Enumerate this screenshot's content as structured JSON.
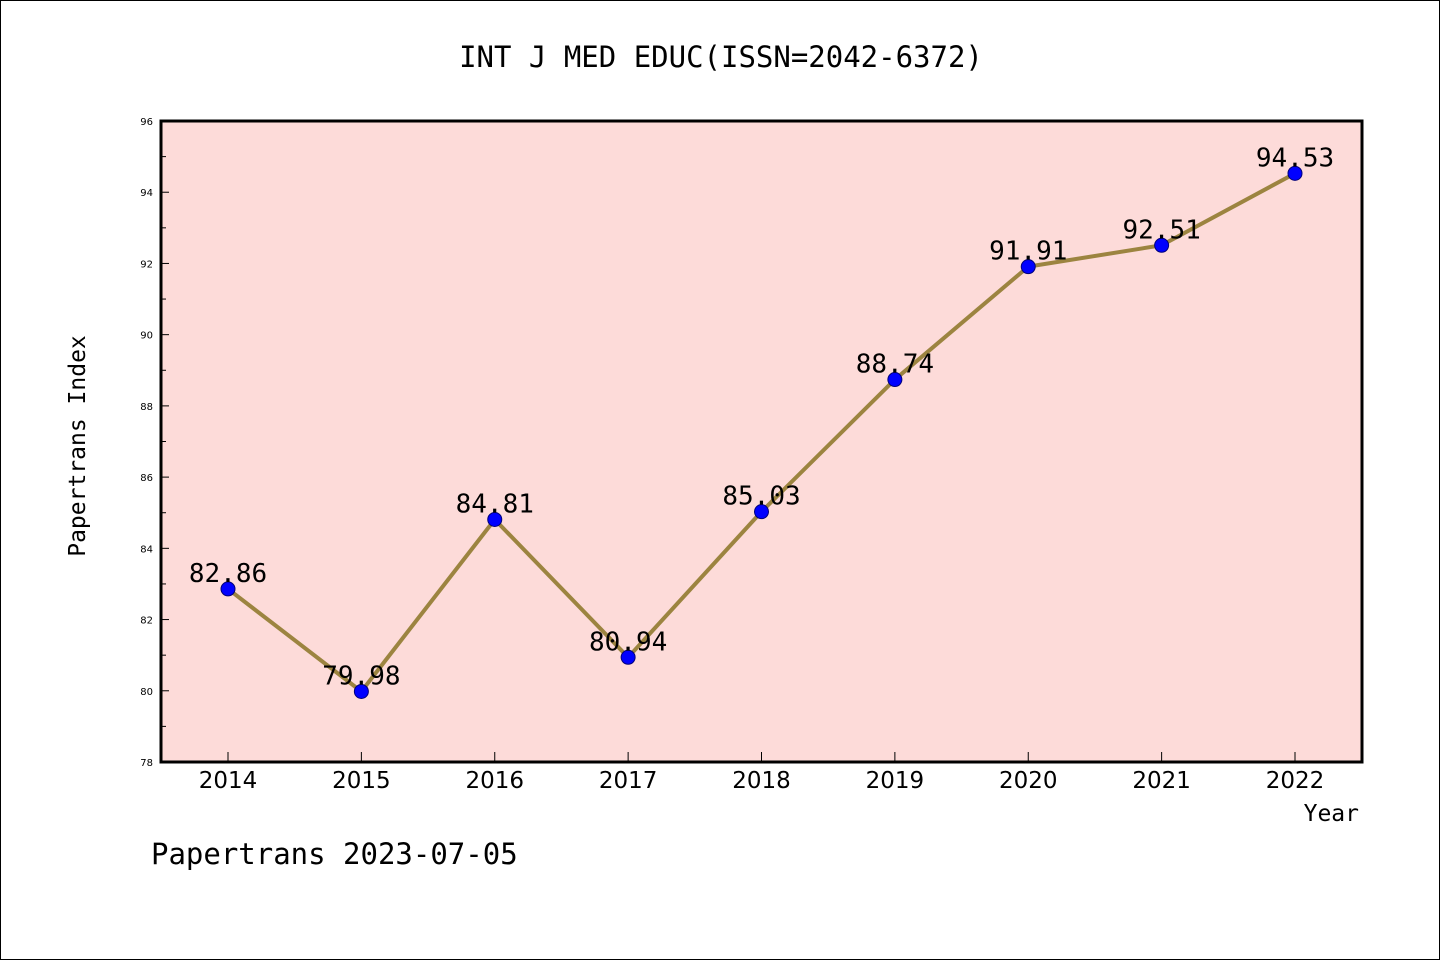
{
  "chart_data": {
    "type": "line",
    "title": "INT J MED EDUC(ISSN=2042-6372)",
    "xlabel": "Year",
    "ylabel": "Papertrans Index",
    "categories": [
      "2014",
      "2015",
      "2016",
      "2017",
      "2018",
      "2019",
      "2020",
      "2021",
      "2022"
    ],
    "series": [
      {
        "values": [
          82.86,
          79.98,
          84.81,
          80.94,
          85.03,
          88.74,
          91.91,
          92.51,
          94.53
        ]
      }
    ],
    "data_labels": [
      "82.86",
      "79.98",
      "84.81",
      "80.94",
      "85.03",
      "88.74",
      "91.91",
      "92.51",
      "94.53"
    ],
    "ylim": [
      78,
      96
    ],
    "yticks": [
      78,
      80,
      82,
      84,
      86,
      88,
      90,
      92,
      94,
      96
    ],
    "ytick_labels": [
      "78",
      "80",
      "82",
      "84",
      "86",
      "88",
      "90",
      "92",
      "94",
      "96"
    ],
    "grid": false,
    "colors": {
      "plot_background": "#fddbd9",
      "line": "#9c8440",
      "marker_fill": "#0000ff",
      "marker_edge": "#00007a"
    }
  },
  "footer": {
    "text": "Papertrans 2023-07-05"
  }
}
